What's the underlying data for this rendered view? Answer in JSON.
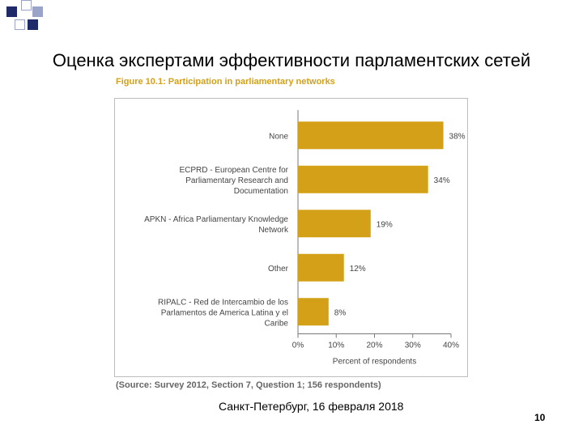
{
  "slide": {
    "title": "Оценка экспертами эффективности парламентских сетей",
    "footer": "Санкт-Петербург, 16 февраля 2018",
    "page_number": "10"
  },
  "colors": {
    "bar": "#d4a017",
    "accent": "#d4a017",
    "deco_dark": "#1f2a6b",
    "deco_light": "#9aa3c8"
  },
  "chart_data": {
    "type": "bar",
    "orientation": "horizontal",
    "title": "Figure 10.1: Participation in parliamentary networks",
    "categories": [
      [
        "None"
      ],
      [
        "ECPRD - European Centre for",
        "Parliamentary Research and",
        "Documentation"
      ],
      [
        "APKN - Africa Parliamentary Knowledge",
        "Network"
      ],
      [
        "Other"
      ],
      [
        "RIPALC - Red de Intercambio de los",
        "Parlamentos de America Latina y el",
        "Caribe"
      ]
    ],
    "values": [
      38,
      34,
      19,
      12,
      8
    ],
    "value_labels": [
      "38%",
      "34%",
      "19%",
      "12%",
      "8%"
    ],
    "xlabel": "Percent of respondents",
    "xlim": [
      0,
      40
    ],
    "xticks": [
      0,
      10,
      20,
      30,
      40
    ],
    "xtick_labels": [
      "0%",
      "10%",
      "20%",
      "30%",
      "40%"
    ],
    "grid": false,
    "source": "(Source: Survey 2012, Section 7, Question 1; 156 respondents)"
  }
}
